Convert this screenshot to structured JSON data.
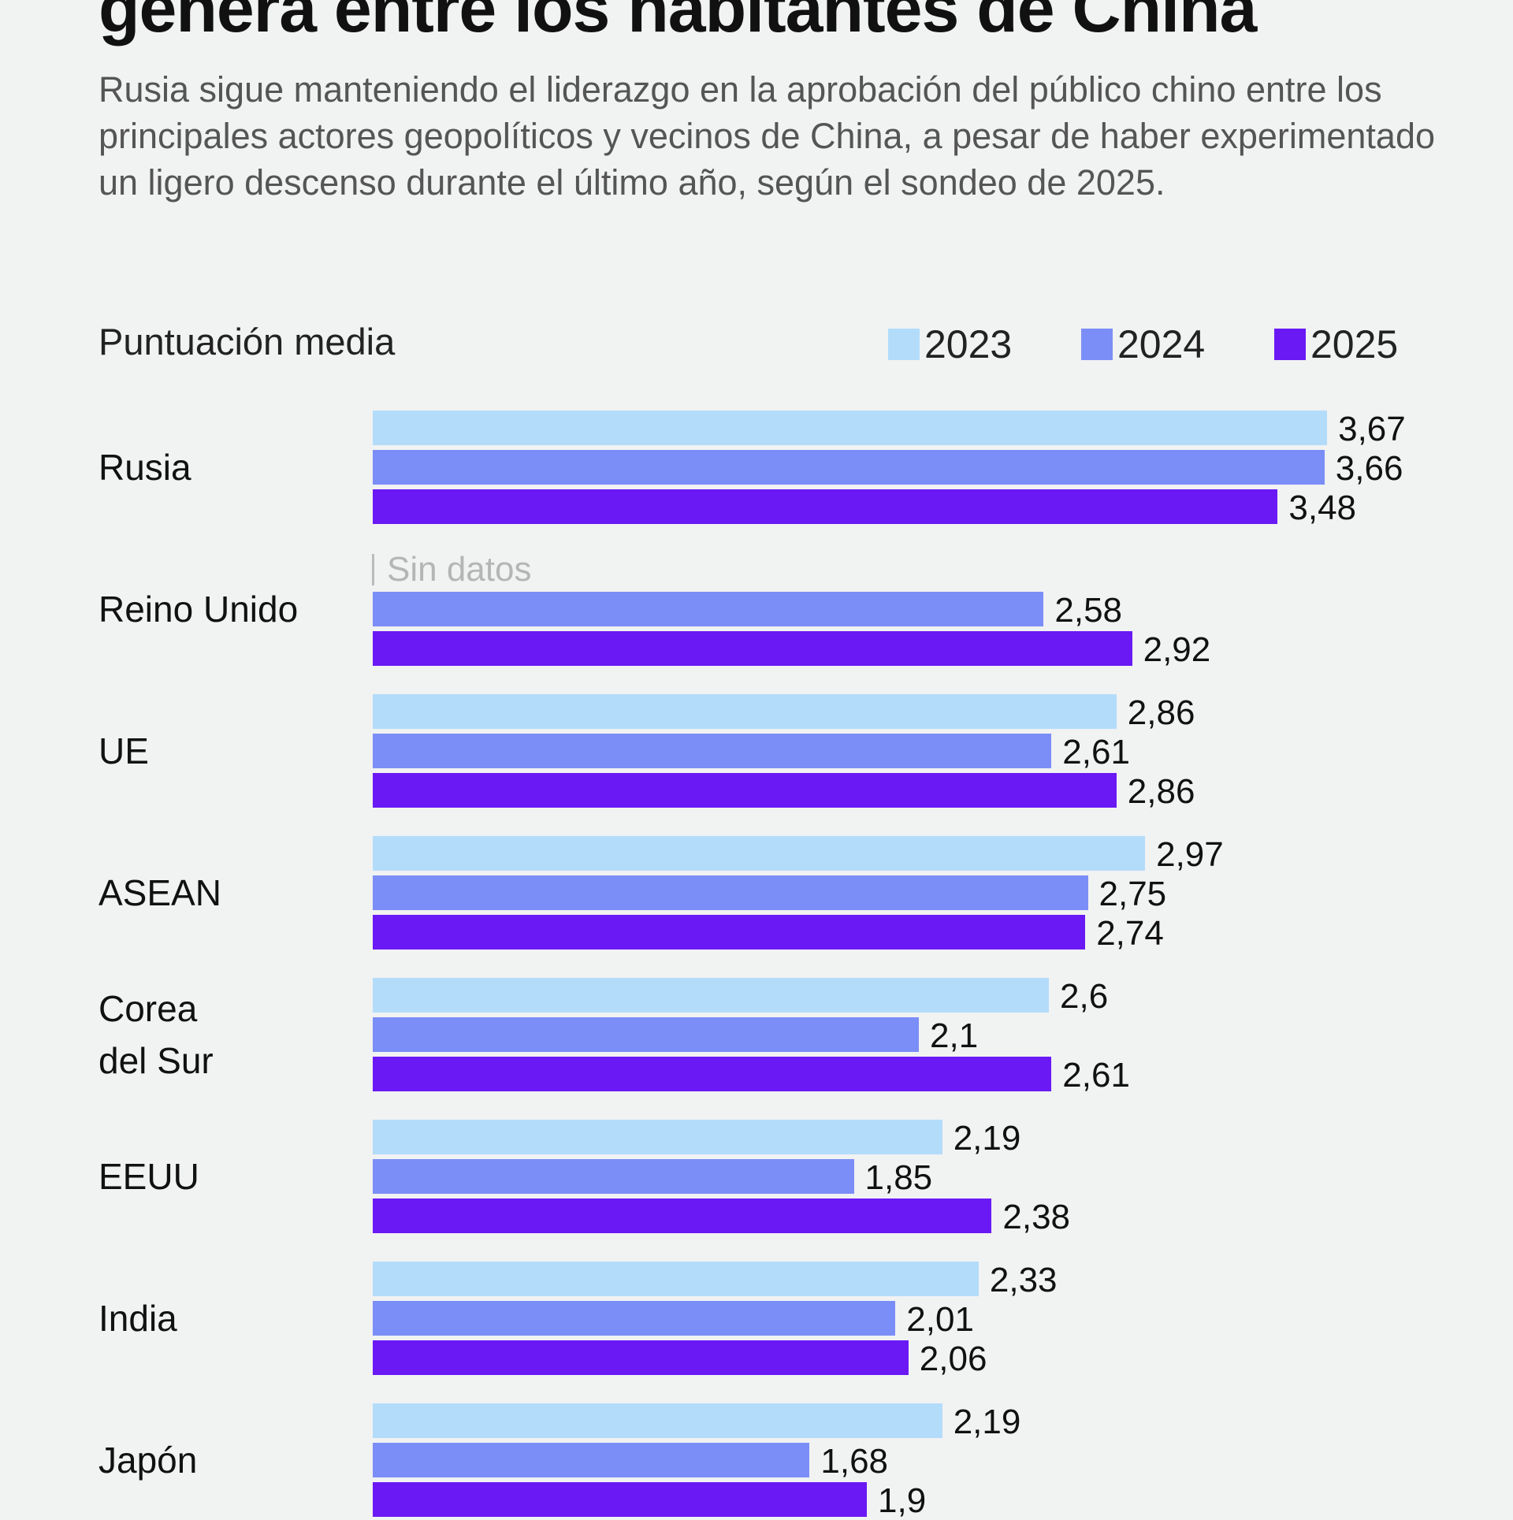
{
  "title": "genera entre los habitantes de China",
  "subtitle": "Rusia sigue manteniendo el liderazgo en la aprobación del público chino entre los principales actores geopolíticos y vecinos de China, a pesar de haber experimentado un ligero descenso durante el último año, según el sondeo de 2025.",
  "chart_data": {
    "type": "bar",
    "orientation": "horizontal",
    "ylabel": "Puntuación media",
    "legend_position": "top-right",
    "grid": false,
    "no_data_label": "Sin datos",
    "categories": [
      "Rusia",
      "Reino Unido",
      "UE",
      "ASEAN",
      "Corea del Sur",
      "EEUU",
      "India",
      "Japón"
    ],
    "series": [
      {
        "name": "2023",
        "color": "#b3dcfb",
        "values": [
          3.67,
          null,
          2.86,
          2.97,
          2.6,
          2.19,
          2.33,
          2.19
        ],
        "labels": [
          "3,67",
          "",
          "2,86",
          "2,97",
          "2,6",
          "2,19",
          "2,33",
          "2,19"
        ]
      },
      {
        "name": "2024",
        "color": "#7b8ef7",
        "values": [
          3.66,
          2.58,
          2.61,
          2.75,
          2.1,
          1.85,
          2.01,
          1.68
        ],
        "labels": [
          "3,66",
          "2,58",
          "2,61",
          "2,75",
          "2,1",
          "1,85",
          "2,01",
          "1,68"
        ]
      },
      {
        "name": "2025",
        "color": "#6a19f5",
        "values": [
          3.48,
          2.92,
          2.86,
          2.74,
          2.61,
          2.38,
          2.06,
          1.9
        ],
        "labels": [
          "3,48",
          "2,92",
          "2,86",
          "2,74",
          "2,61",
          "2,38",
          "2,06",
          "1,9"
        ]
      }
    ]
  }
}
